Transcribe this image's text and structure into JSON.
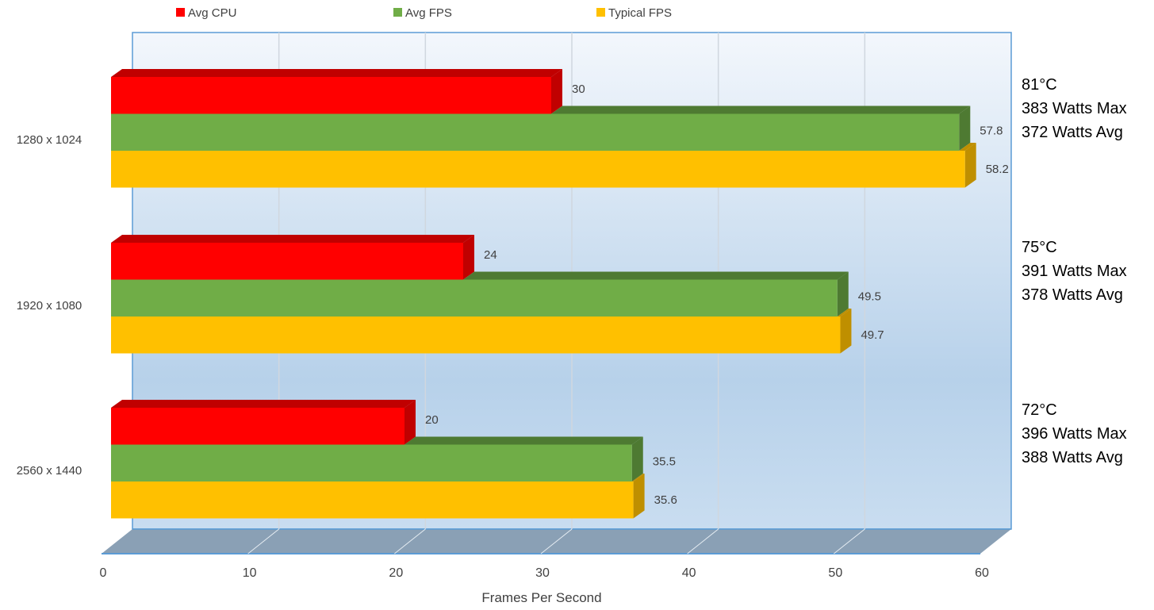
{
  "chart_data": {
    "type": "bar",
    "orientation": "horizontal",
    "style": "3d",
    "title": "",
    "xlabel": "Frames Per Second",
    "ylabel": "",
    "xlim": [
      0,
      60
    ],
    "xticks": [
      "0",
      "10",
      "20",
      "30",
      "40",
      "50",
      "60"
    ],
    "categories": [
      "1280 x 1024",
      "1920 x 1080",
      "2560 x 1440"
    ],
    "series": [
      {
        "name": "Avg CPU",
        "color": "#ff0000",
        "side": "#c00000",
        "values": [
          30,
          24,
          20
        ]
      },
      {
        "name": "Avg FPS",
        "color": "#70ad47",
        "side": "#4e7a32",
        "values": [
          57.8,
          49.5,
          35.5
        ]
      },
      {
        "name": "Typical FPS",
        "color": "#ffc000",
        "side": "#bf8f00",
        "values": [
          58.2,
          49.7,
          35.6
        ]
      }
    ],
    "legend_position": "top",
    "grid": true,
    "annotations": [
      [
        "81°C",
        "383 Watts Max",
        "372 Watts Avg"
      ],
      [
        "75°C",
        "391 Watts Max",
        "378 Watts Avg"
      ],
      [
        "72°C",
        "396 Watts Max",
        "388 Watts Avg"
      ]
    ]
  }
}
